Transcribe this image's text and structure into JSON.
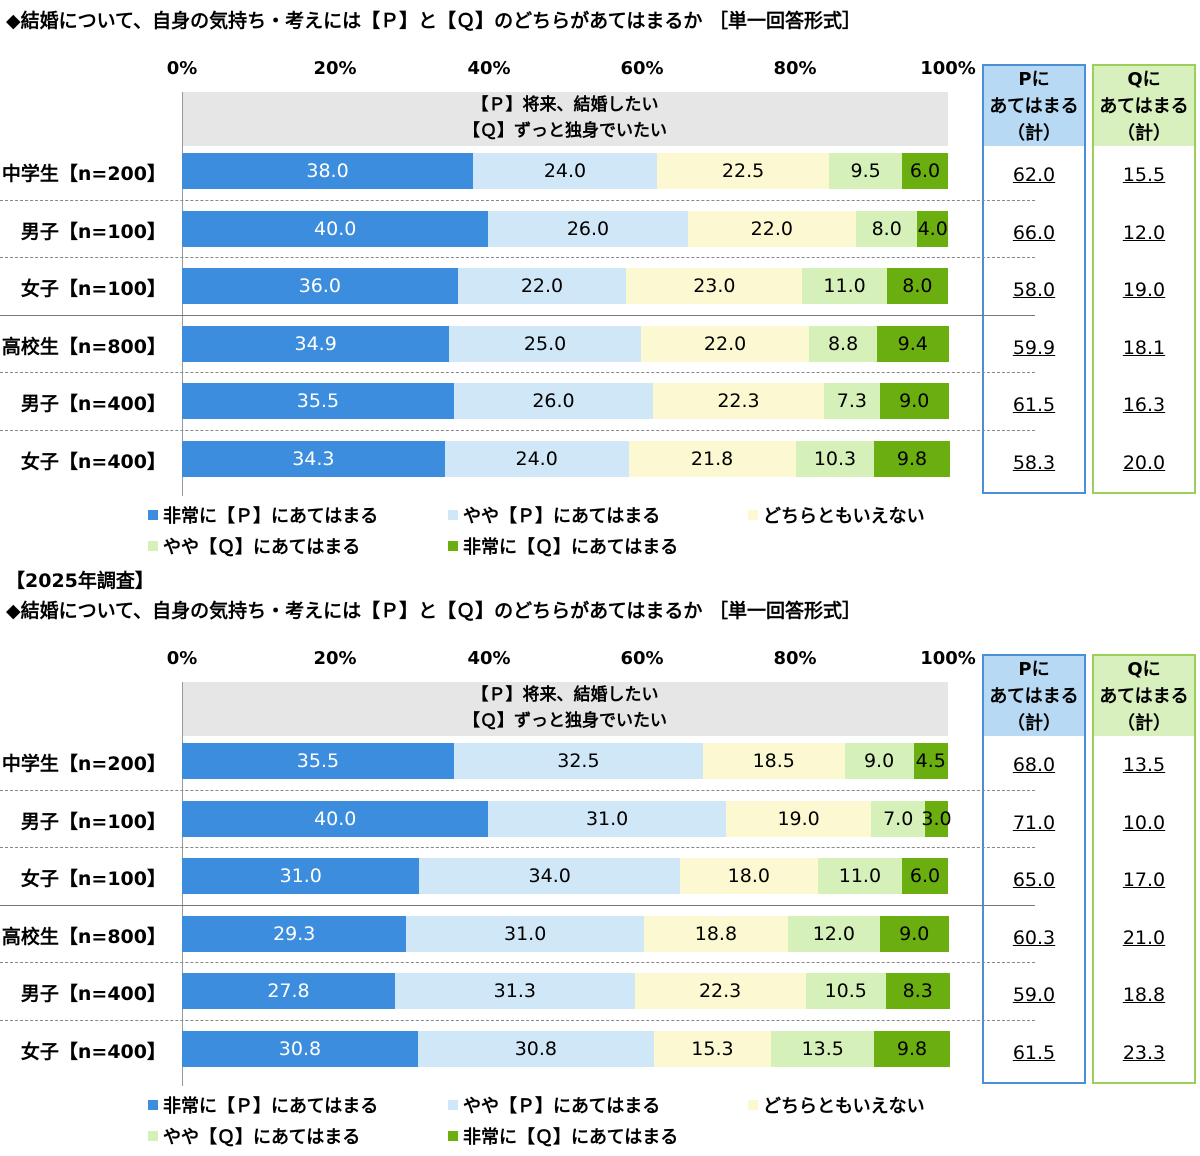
{
  "colors": {
    "strong_p": "#3c8ddd",
    "some_p": "#cfe7f7",
    "neutral": "#fcf9d2",
    "some_q": "#d5f0b8",
    "strong_q": "#6aae10",
    "p_box_border": "#4a90d9",
    "p_box_fill": "#b8d9f4",
    "q_box_border": "#9bcf5a",
    "q_box_fill": "#d8efbe"
  },
  "chart_data": [
    {
      "type": "bar",
      "stacked": true,
      "orientation": "horizontal",
      "title": "◆結婚について、自身の気持ち・考えには【Ｐ】と【Ｑ】のどちらがあてはまるか ［単一回答形式］",
      "x_ticks": [
        "0%",
        "20%",
        "40%",
        "60%",
        "80%",
        "100%"
      ],
      "xlim": [
        0,
        100
      ],
      "header_lines": [
        "【Ｐ】将来、結婚したい",
        "【Ｑ】ずっと独身でいたい"
      ],
      "categories": [
        "中学生【n=200】",
        "男子【n=100】",
        "女子【n=100】",
        "高校生【n=800】",
        "男子【n=400】",
        "女子【n=400】"
      ],
      "series": [
        {
          "name": "非常に【Ｐ】にあてはまる",
          "values": [
            38.0,
            40.0,
            36.0,
            34.9,
            35.5,
            34.3
          ]
        },
        {
          "name": "やや【Ｐ】にあてはまる",
          "values": [
            24.0,
            26.0,
            22.0,
            25.0,
            26.0,
            24.0
          ]
        },
        {
          "name": "どちらともいえない",
          "values": [
            22.5,
            22.0,
            23.0,
            22.0,
            22.3,
            21.8
          ]
        },
        {
          "name": "やや【Ｑ】にあてはまる",
          "values": [
            9.5,
            8.0,
            11.0,
            8.8,
            7.3,
            10.3
          ]
        },
        {
          "name": "非常に【Ｑ】にあてはまる",
          "values": [
            6.0,
            4.0,
            8.0,
            9.4,
            9.0,
            9.8
          ]
        }
      ],
      "p_total": {
        "header": [
          "Pに",
          "あてはまる",
          "（計）"
        ],
        "values": [
          "62.0",
          "66.0",
          "58.0",
          "59.9",
          "61.5",
          "58.3"
        ]
      },
      "q_total": {
        "header": [
          "Qに",
          "あてはまる",
          "（計）"
        ],
        "values": [
          "15.5",
          "12.0",
          "19.0",
          "18.1",
          "16.3",
          "20.0"
        ]
      }
    },
    {
      "type": "bar",
      "stacked": true,
      "orientation": "horizontal",
      "survey_label": "【2025年調査】",
      "title": "◆結婚について、自身の気持ち・考えには【Ｐ】と【Ｑ】のどちらがあてはまるか ［単一回答形式］",
      "x_ticks": [
        "0%",
        "20%",
        "40%",
        "60%",
        "80%",
        "100%"
      ],
      "xlim": [
        0,
        100
      ],
      "header_lines": [
        "【Ｐ】将来、結婚したい",
        "【Ｑ】ずっと独身でいたい"
      ],
      "categories": [
        "中学生【n=200】",
        "男子【n=100】",
        "女子【n=100】",
        "高校生【n=800】",
        "男子【n=400】",
        "女子【n=400】"
      ],
      "series": [
        {
          "name": "非常に【Ｐ】にあてはまる",
          "values": [
            35.5,
            40.0,
            31.0,
            29.3,
            27.8,
            30.8
          ]
        },
        {
          "name": "やや【Ｐ】にあてはまる",
          "values": [
            32.5,
            31.0,
            34.0,
            31.0,
            31.3,
            30.8
          ]
        },
        {
          "name": "どちらともいえない",
          "values": [
            18.5,
            19.0,
            18.0,
            18.8,
            22.3,
            15.3
          ]
        },
        {
          "name": "やや【Ｑ】にあてはまる",
          "values": [
            9.0,
            7.0,
            11.0,
            12.0,
            10.5,
            13.5
          ]
        },
        {
          "name": "非常に【Ｑ】にあてはまる",
          "values": [
            4.5,
            3.0,
            6.0,
            9.0,
            8.3,
            9.8
          ]
        }
      ],
      "p_total": {
        "header": [
          "Pに",
          "あてはまる",
          "（計）"
        ],
        "values": [
          "68.0",
          "71.0",
          "65.0",
          "60.3",
          "59.0",
          "61.5"
        ]
      },
      "q_total": {
        "header": [
          "Qに",
          "あてはまる",
          "（計）"
        ],
        "values": [
          "13.5",
          "10.0",
          "17.0",
          "21.0",
          "18.8",
          "23.3"
        ]
      }
    }
  ]
}
